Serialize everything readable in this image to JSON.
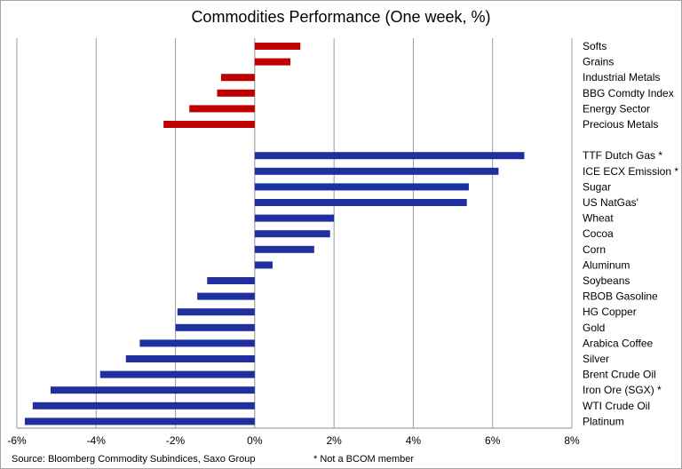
{
  "chart_data": {
    "type": "bar",
    "orientation": "horizontal",
    "title": "Commodities Performance (One week, %)",
    "xlim": [
      -6,
      8
    ],
    "xticks": [
      "-6%",
      "-4%",
      "-2%",
      "0%",
      "2%",
      "4%",
      "6%",
      "8%"
    ],
    "grid": true,
    "groups": [
      {
        "color": "#c00000",
        "categories": [
          "Softs",
          "Grains",
          "Industrial Metals",
          "BBG Comdty Index",
          "Energy Sector",
          "Precious Metals"
        ],
        "values": [
          1.15,
          0.9,
          -0.85,
          -0.95,
          -1.65,
          -2.3
        ]
      },
      {
        "color": "#1f2f9f",
        "categories": [
          "TTF Dutch Gas *",
          "ICE ECX Emission *",
          "Sugar",
          "US NatGas'",
          "Wheat",
          "Cocoa",
          "Corn",
          "Aluminum",
          "Soybeans",
          "RBOB Gasoline",
          "HG Copper",
          "Gold",
          "Arabica Coffee",
          "Silver",
          "Brent Crude Oil",
          "Iron Ore (SGX) *",
          "WTI Crude Oil",
          "Platinum"
        ],
        "values": [
          6.8,
          6.15,
          5.4,
          5.35,
          2.0,
          1.9,
          1.5,
          0.45,
          -1.2,
          -1.45,
          -1.95,
          -2.0,
          -2.9,
          -3.25,
          -3.9,
          -5.15,
          -5.6,
          -5.8
        ]
      }
    ]
  },
  "footer": {
    "source": "Source: Bloomberg Commodity Subindices, Saxo Group",
    "note": "* Not a BCOM member"
  }
}
